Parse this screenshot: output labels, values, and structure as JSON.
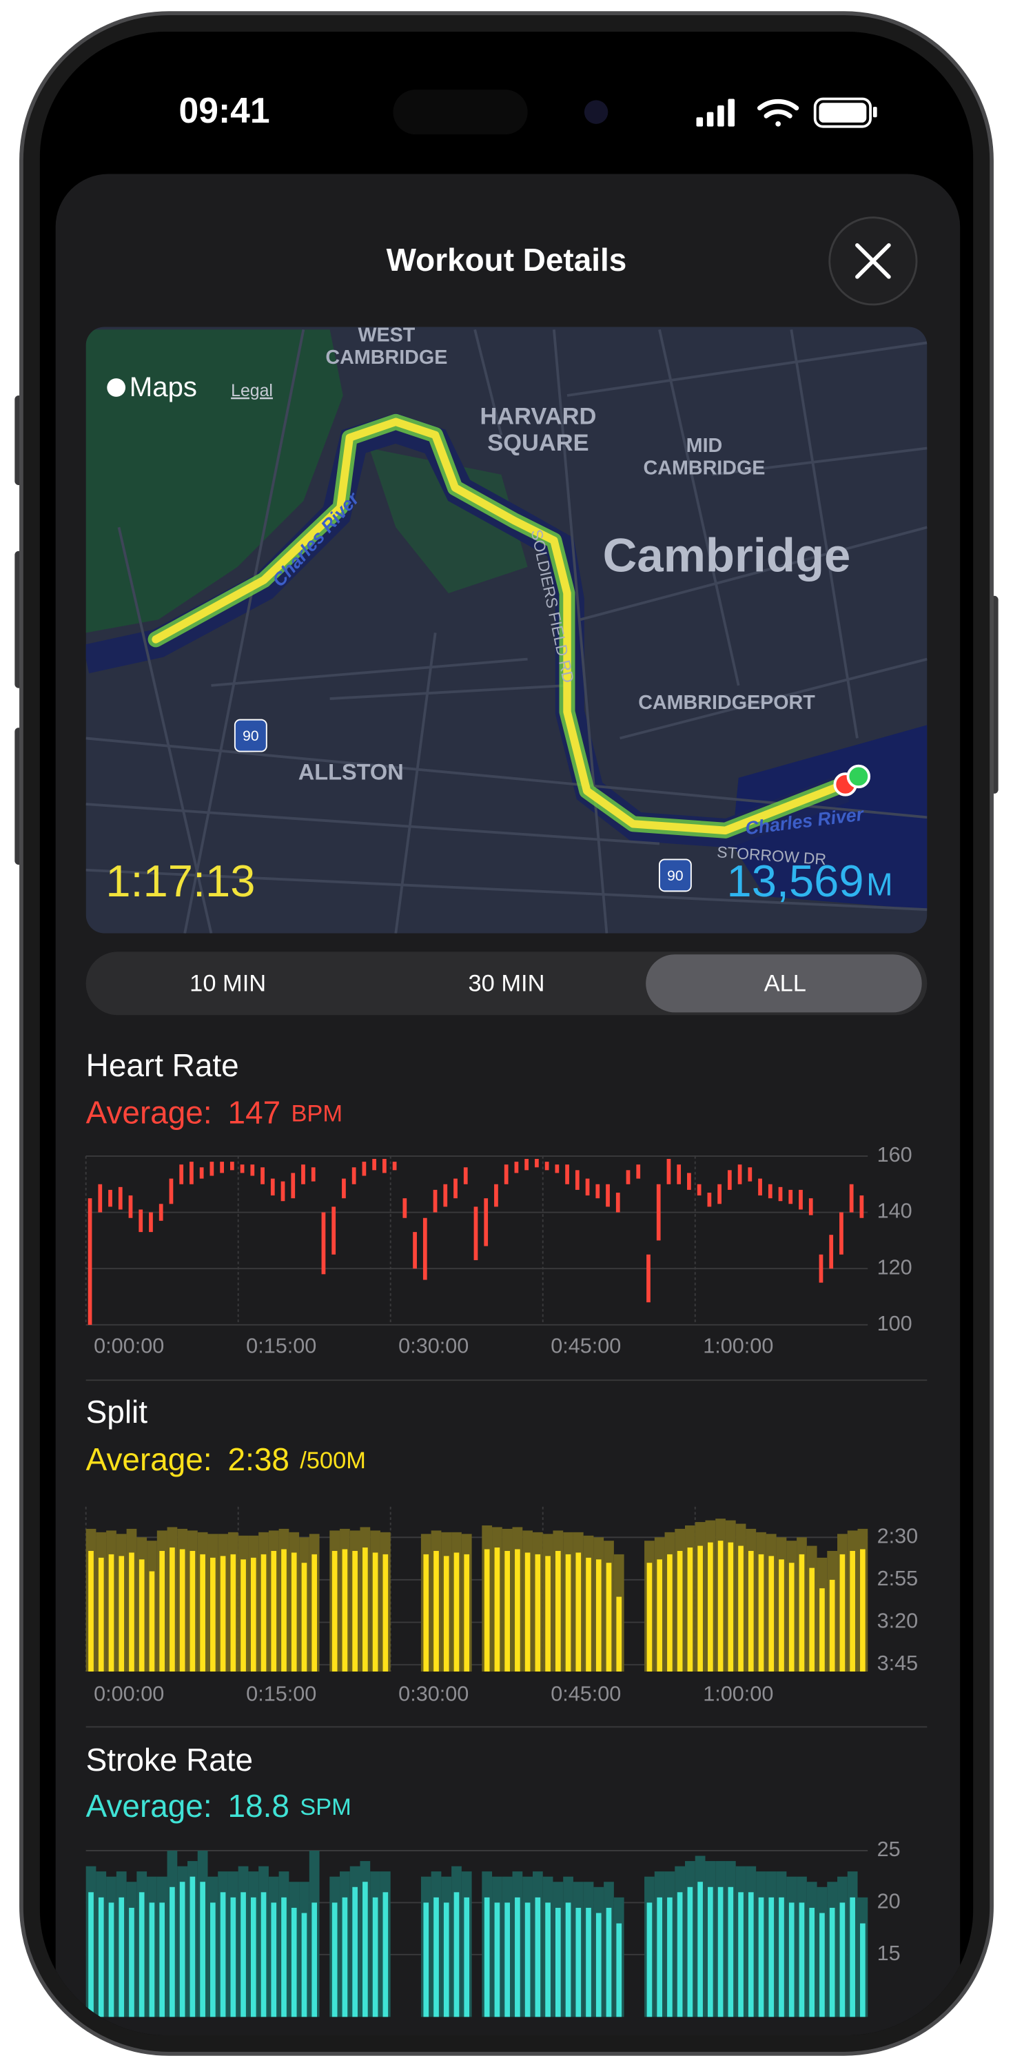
{
  "status_bar": {
    "time": "09:41"
  },
  "header": {
    "title": "Workout Details"
  },
  "map": {
    "brand": "Maps",
    "legal": "Legal",
    "places": [
      [
        "WEST",
        "CAMBRIDGE"
      ],
      [
        "HARVARD",
        "SQUARE"
      ],
      [
        "MID",
        "CAMBRIDGE"
      ],
      [
        "Cambridge"
      ],
      [
        "CAMBRIDGEPORT"
      ],
      [
        "ALLSTON"
      ]
    ],
    "river": "Charles River",
    "roads": [
      "SOLDIERS FIELD RD",
      "STORROW DR"
    ],
    "highway": "90",
    "duration": "1:17:13",
    "distance": "13,569",
    "distance_unit": "M"
  },
  "segments": {
    "options": [
      "10 MIN",
      "30 MIN",
      "ALL"
    ],
    "selected": 2
  },
  "chart_data": [
    {
      "type": "range_bar",
      "title": "Heart Rate",
      "average_label": "Average:",
      "average": 147,
      "unit": "BPM",
      "color": "#ff453a",
      "x": [
        0,
        1,
        2,
        3,
        4,
        5,
        6,
        7,
        8,
        9,
        10,
        11,
        12,
        13,
        14,
        15,
        16,
        17,
        18,
        19,
        20,
        21,
        22,
        23,
        24,
        25,
        26,
        27,
        28,
        29,
        30,
        31,
        32,
        33,
        34,
        35,
        36,
        37,
        38,
        39,
        40,
        41,
        42,
        43,
        44,
        45,
        46,
        47,
        48,
        49,
        50,
        51,
        52,
        53,
        54,
        55,
        56,
        57,
        58,
        59,
        60,
        61,
        62,
        63,
        64,
        65,
        66,
        67,
        68,
        69,
        70,
        71,
        72,
        73,
        74,
        75,
        76
      ],
      "low": [
        100,
        140,
        142,
        141,
        138,
        133,
        133,
        137,
        143,
        150,
        150,
        152,
        153,
        154,
        155,
        154,
        153,
        150,
        146,
        144,
        145,
        150,
        151,
        118,
        125,
        145,
        150,
        153,
        155,
        154,
        155,
        138,
        120,
        116,
        140,
        142,
        145,
        150,
        123,
        128,
        142,
        150,
        154,
        155,
        156,
        155,
        154,
        150,
        148,
        146,
        145,
        142,
        140,
        150,
        152,
        108,
        130,
        150,
        150,
        148,
        146,
        142,
        143,
        148,
        150,
        151,
        146,
        145,
        144,
        143,
        141,
        139,
        115,
        120,
        125,
        140,
        138
      ],
      "high": [
        145,
        150,
        148,
        149,
        146,
        141,
        140,
        143,
        152,
        157,
        158,
        156,
        158,
        158,
        158,
        157,
        157,
        156,
        152,
        151,
        154,
        157,
        156,
        140,
        142,
        152,
        156,
        158,
        159,
        159,
        158,
        145,
        133,
        138,
        148,
        150,
        152,
        156,
        142,
        145,
        150,
        157,
        158,
        159,
        159,
        158,
        157,
        157,
        155,
        152,
        150,
        150,
        147,
        155,
        157,
        125,
        150,
        159,
        157,
        154,
        150,
        147,
        150,
        155,
        157,
        156,
        152,
        150,
        149,
        148,
        148,
        145,
        125,
        132,
        140,
        150,
        146
      ],
      "xlim": [
        0,
        77
      ],
      "ylim": [
        100,
        160
      ],
      "yticks": [
        100,
        120,
        140,
        160
      ],
      "xticks": [
        {
          "value": 0,
          "label": "0:00:00"
        },
        {
          "value": 15,
          "label": "0:15:00"
        },
        {
          "value": 30,
          "label": "0:30:00"
        },
        {
          "value": 45,
          "label": "0:45:00"
        },
        {
          "value": 60,
          "label": "1:00:00"
        }
      ],
      "grid": true
    },
    {
      "type": "bar",
      "title": "Split",
      "average_label": "Average:",
      "average": "2:38",
      "unit": "/500M",
      "color": "#ffe11a",
      "best_color": "#6b6120",
      "x": [
        0,
        1,
        2,
        3,
        4,
        5,
        6,
        7,
        8,
        9,
        10,
        11,
        12,
        13,
        14,
        15,
        16,
        17,
        18,
        19,
        20,
        21,
        22,
        23,
        24,
        25,
        26,
        27,
        28,
        29,
        30,
        31,
        32,
        33,
        34,
        35,
        36,
        37,
        38,
        39,
        40,
        41,
        42,
        43,
        44,
        45,
        46,
        47,
        48,
        49,
        50,
        51,
        52,
        53,
        54,
        55,
        56,
        57,
        58,
        59,
        60,
        61,
        62,
        63,
        64,
        65,
        66,
        67,
        68,
        69,
        70,
        71,
        72,
        73,
        74,
        75,
        76
      ],
      "values": [
        158,
        162,
        160,
        161,
        159,
        163,
        170,
        158,
        156,
        157,
        158,
        160,
        162,
        161,
        160,
        163,
        162,
        160,
        158,
        157,
        159,
        165,
        160,
        null,
        158,
        157,
        158,
        156,
        159,
        160,
        null,
        null,
        null,
        160,
        158,
        161,
        159,
        160,
        null,
        157,
        156,
        158,
        157,
        159,
        160,
        161,
        158,
        160,
        159,
        162,
        163,
        165,
        185,
        null,
        null,
        165,
        163,
        160,
        158,
        156,
        155,
        153,
        152,
        153,
        155,
        158,
        160,
        161,
        163,
        165,
        160,
        168,
        180,
        175,
        160,
        158,
        157
      ],
      "best": [
        145,
        147,
        146,
        148,
        145,
        150,
        152,
        146,
        144,
        145,
        146,
        147,
        148,
        148,
        147,
        149,
        149,
        147,
        146,
        145,
        147,
        150,
        148,
        null,
        146,
        145,
        146,
        144,
        146,
        147,
        null,
        null,
        null,
        148,
        146,
        147,
        147,
        148,
        null,
        143,
        144,
        145,
        144,
        146,
        147,
        148,
        146,
        147,
        147,
        149,
        150,
        152,
        160,
        null,
        null,
        152,
        150,
        147,
        145,
        143,
        141,
        140,
        139,
        140,
        142,
        145,
        147,
        148,
        150,
        152,
        150,
        155,
        162,
        158,
        148,
        146,
        145
      ],
      "xlim": [
        0,
        77
      ],
      "ylim": [
        229,
        132
      ],
      "yticks": [
        {
          "value": 150,
          "label": "2:30"
        },
        {
          "value": 175,
          "label": "2:55"
        },
        {
          "value": 200,
          "label": "3:20"
        },
        {
          "value": 225,
          "label": "3:45"
        }
      ],
      "xticks": [
        {
          "value": 0,
          "label": "0:00:00"
        },
        {
          "value": 15,
          "label": "0:15:00"
        },
        {
          "value": 30,
          "label": "0:30:00"
        },
        {
          "value": 45,
          "label": "0:45:00"
        },
        {
          "value": 60,
          "label": "1:00:00"
        }
      ],
      "grid": true
    },
    {
      "type": "bar",
      "title": "Stroke Rate",
      "average_label": "Average:",
      "average": 18.8,
      "unit": "SPM",
      "color": "#40e3d6",
      "best_color": "#1d5a56",
      "x": [
        0,
        1,
        2,
        3,
        4,
        5,
        6,
        7,
        8,
        9,
        10,
        11,
        12,
        13,
        14,
        15,
        16,
        17,
        18,
        19,
        20,
        21,
        22,
        23,
        24,
        25,
        26,
        27,
        28,
        29,
        30,
        31,
        32,
        33,
        34,
        35,
        36,
        37,
        38,
        39,
        40,
        41,
        42,
        43,
        44,
        45,
        46,
        47,
        48,
        49,
        50,
        51,
        52,
        53,
        54,
        55,
        56,
        57,
        58,
        59,
        60,
        61,
        62,
        63,
        64,
        65,
        66,
        67,
        68,
        69,
        70,
        71,
        72,
        73,
        74,
        75,
        76
      ],
      "values": [
        21,
        20.5,
        20,
        20.5,
        19.5,
        21,
        20,
        20,
        21.5,
        22,
        22.5,
        22,
        20,
        21,
        20.5,
        21,
        20.5,
        21,
        20,
        20.5,
        19.5,
        19,
        20,
        null,
        20,
        20.5,
        21.5,
        22,
        20.5,
        21,
        null,
        null,
        null,
        20,
        20.5,
        20,
        21,
        20.5,
        null,
        20.5,
        20,
        20,
        20.5,
        20,
        20.5,
        20,
        19.5,
        20,
        19.5,
        19.5,
        19,
        19.5,
        18,
        null,
        null,
        20,
        20.5,
        20.5,
        21,
        21.5,
        22,
        21.5,
        21.5,
        21.5,
        21,
        21,
        20.5,
        20.5,
        20.5,
        20,
        20,
        19.5,
        19,
        19.5,
        20,
        20.5,
        18
      ],
      "best": [
        23.5,
        23,
        22.5,
        23,
        22,
        23,
        22.5,
        22.5,
        25,
        23.5,
        24,
        25,
        22.5,
        23,
        23,
        23.5,
        23,
        23.5,
        22.5,
        23,
        22,
        22,
        25,
        null,
        22.5,
        23,
        23.5,
        24,
        23,
        23,
        null,
        null,
        null,
        22.5,
        23,
        22.5,
        23.5,
        23,
        null,
        23,
        22.5,
        22.5,
        23,
        22.5,
        23,
        22.5,
        22,
        22.5,
        22,
        22,
        21.5,
        22,
        20.5,
        null,
        null,
        22.5,
        23,
        23,
        23.5,
        24,
        24.5,
        24,
        24,
        24,
        23.5,
        23.5,
        23,
        23,
        23,
        22.5,
        22.5,
        22,
        21.5,
        22,
        22.5,
        23,
        20.5
      ],
      "xlim": [
        0,
        77
      ],
      "ylim": [
        9,
        26
      ],
      "yticks": [
        15,
        20,
        25
      ],
      "grid": true
    }
  ]
}
